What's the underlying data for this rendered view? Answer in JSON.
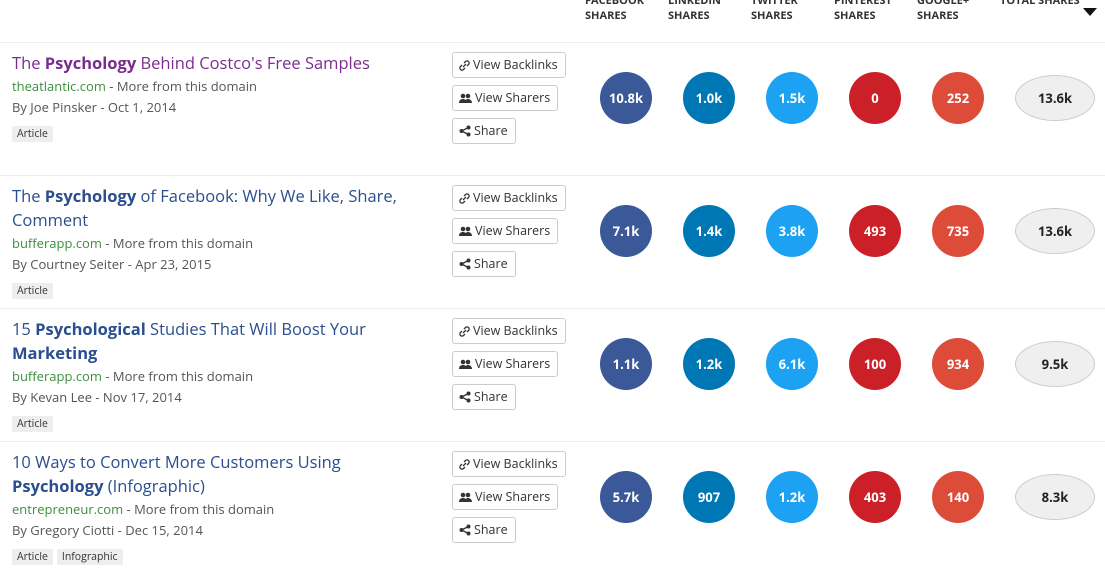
{
  "header": {
    "columns": [
      "FACEBOOK SHARES",
      "LINKEDIN SHARES",
      "TWITTER SHARES",
      "PINTEREST SHARES",
      "GOOGLE+ SHARES",
      "TOTAL SHARES"
    ]
  },
  "network_colors": [
    "#3b5998",
    "#0077b5",
    "#1da1f2",
    "#cb2027",
    "#dd4b39"
  ],
  "actions": [
    "View Backlinks",
    "View Sharers",
    "Share"
  ],
  "rows": [
    {
      "title": [
        {
          "text": "The ",
          "bold": false
        },
        {
          "text": "Psychology",
          "bold": true
        },
        {
          "text": " Behind Costco's Free Samples",
          "bold": false
        }
      ],
      "visited": true,
      "domain": "theatlantic.com",
      "more": "- More from this domain",
      "meta": "By Joe Pinsker - Oct 1, 2014",
      "tags": [
        "Article"
      ],
      "shares": [
        "10.8k",
        "1.0k",
        "1.5k",
        "0",
        "252"
      ],
      "total": "13.6k"
    },
    {
      "title": [
        {
          "text": "The ",
          "bold": false
        },
        {
          "text": "Psychology",
          "bold": true
        },
        {
          "text": " of Facebook: Why We Like, Share, Comment",
          "bold": false
        }
      ],
      "visited": false,
      "domain": "bufferapp.com",
      "more": "- More from this domain",
      "meta": "By Courtney Seiter - Apr 23, 2015",
      "tags": [
        "Article"
      ],
      "shares": [
        "7.1k",
        "1.4k",
        "3.8k",
        "493",
        "735"
      ],
      "total": "13.6k"
    },
    {
      "title": [
        {
          "text": "15 ",
          "bold": false
        },
        {
          "text": "Psychological",
          "bold": true
        },
        {
          "text": " Studies That Will Boost Your ",
          "bold": false
        },
        {
          "text": "Marketing",
          "bold": true
        }
      ],
      "visited": false,
      "domain": "bufferapp.com",
      "more": "- More from this domain",
      "meta": "By Kevan Lee - Nov 17, 2014",
      "tags": [
        "Article"
      ],
      "shares": [
        "1.1k",
        "1.2k",
        "6.1k",
        "100",
        "934"
      ],
      "total": "9.5k"
    },
    {
      "title": [
        {
          "text": "10 Ways to Convert More Customers Using ",
          "bold": false
        },
        {
          "text": "Psychology",
          "bold": true
        },
        {
          "text": " (Infographic)",
          "bold": false
        }
      ],
      "visited": false,
      "domain": "entrepreneur.com",
      "more": "- More from this domain",
      "meta": "By Gregory Ciotti - Dec 15, 2014",
      "tags": [
        "Article",
        "Infographic"
      ],
      "shares": [
        "5.7k",
        "907",
        "1.2k",
        "403",
        "140"
      ],
      "total": "8.3k"
    }
  ]
}
